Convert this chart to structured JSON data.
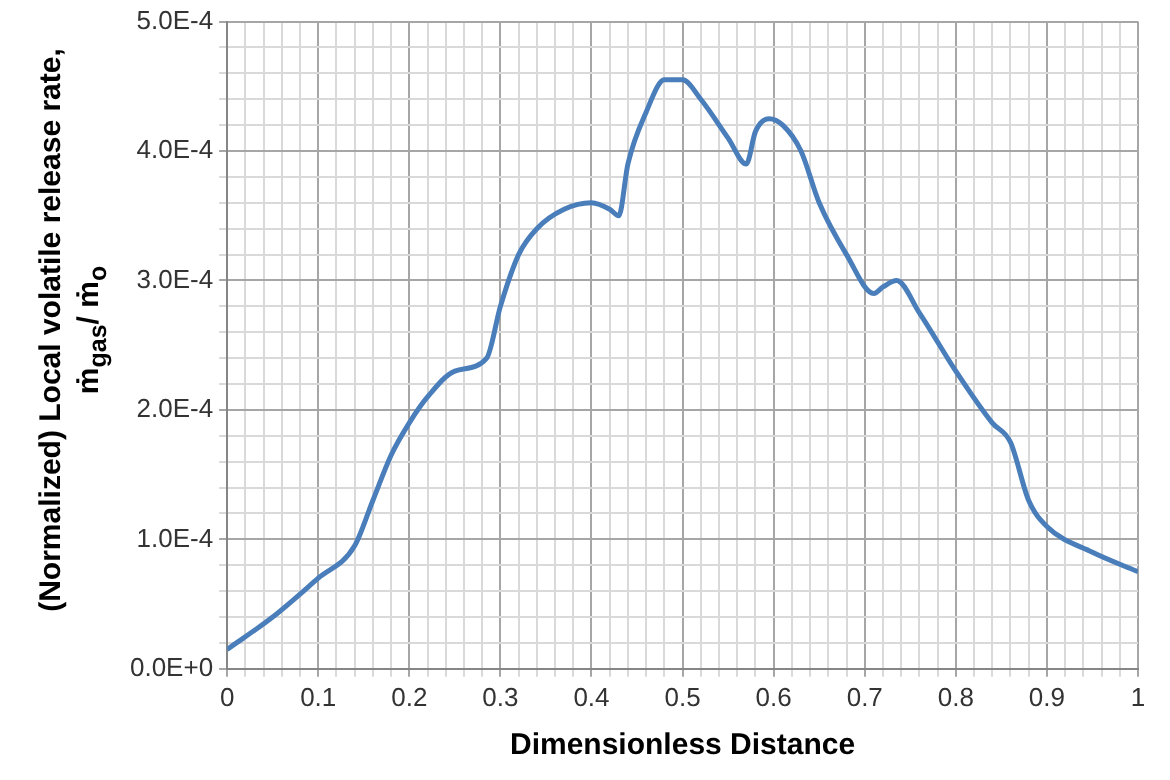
{
  "chart_data": {
    "type": "line",
    "xlabel": "Dimensionless Distance",
    "ylabel": "(Normalized) Local volatile release rate, ṁ$_{gas}$/ ṁ$_{o}$",
    "x": [
      0,
      0.05,
      0.1,
      0.14,
      0.16,
      0.18,
      0.2,
      0.22,
      0.25,
      0.285,
      0.3,
      0.32,
      0.34,
      0.37,
      0.4,
      0.42,
      0.43,
      0.44,
      0.46,
      0.48,
      0.5,
      0.52,
      0.55,
      0.57,
      0.58,
      0.595,
      0.61,
      0.63,
      0.65,
      0.68,
      0.71,
      0.72,
      0.735,
      0.76,
      0.8,
      0.84,
      0.86,
      0.88,
      0.9,
      0.95,
      1
    ],
    "series": [
      {
        "color": "#4a7ebb",
        "values": [
          1.5e-05,
          4e-05,
          7e-05,
          9.5e-05,
          0.00013,
          0.000165,
          0.00019,
          0.00021,
          0.00023,
          0.00024,
          0.00028,
          0.00032,
          0.00034,
          0.000355,
          0.00036,
          0.000355,
          0.00035,
          0.00039,
          0.00043,
          0.000455,
          0.000455,
          0.00044,
          0.00041,
          0.00039,
          0.000415,
          0.000425,
          0.00042,
          0.0004,
          0.00036,
          0.00032,
          0.00029,
          0.000295,
          0.0003,
          0.000275,
          0.00023,
          0.00019,
          0.000175,
          0.00013,
          0.00011,
          9e-05,
          7.5e-05
        ]
      }
    ],
    "xlim": [
      0,
      1
    ],
    "xticks": [
      0,
      {
        "value": 0.02,
        "label": null
      },
      {
        "value": 0.04,
        "label": null
      },
      {
        "value": 0.06,
        "label": null
      },
      {
        "value": 0.08,
        "label": null
      },
      0.1,
      {
        "value": 0.12,
        "label": null
      },
      {
        "value": 0.14,
        "label": null
      },
      {
        "value": 0.16,
        "label": null
      },
      {
        "value": 0.18,
        "label": null
      },
      0.2,
      {
        "value": 0.22,
        "label": null
      },
      {
        "value": 0.24,
        "label": null
      },
      {
        "value": 0.26,
        "label": null
      },
      {
        "value": 0.28,
        "label": null
      },
      0.3,
      {
        "value": 0.32,
        "label": null
      },
      {
        "value": 0.34,
        "label": null
      },
      {
        "value": 0.36,
        "label": null
      },
      {
        "value": 0.38,
        "label": null
      },
      0.4,
      {
        "value": 0.42,
        "label": null
      },
      {
        "value": 0.44,
        "label": null
      },
      {
        "value": 0.46,
        "label": null
      },
      {
        "value": 0.48,
        "label": null
      },
      0.5,
      {
        "value": 0.52,
        "label": null
      },
      {
        "value": 0.54,
        "label": null
      },
      {
        "value": 0.56,
        "label": null
      },
      {
        "value": 0.58,
        "label": null
      },
      0.6,
      {
        "value": 0.62,
        "label": null
      },
      {
        "value": 0.64,
        "label": null
      },
      {
        "value": 0.66,
        "label": null
      },
      {
        "value": 0.68,
        "label": null
      },
      0.7,
      {
        "value": 0.72,
        "label": null
      },
      {
        "value": 0.74,
        "label": null
      },
      {
        "value": 0.76,
        "label": null
      },
      {
        "value": 0.78,
        "label": null
      },
      0.8,
      {
        "value": 0.82,
        "label": null
      },
      {
        "value": 0.84,
        "label": null
      },
      {
        "value": 0.86,
        "label": null
      },
      {
        "value": 0.88,
        "label": null
      },
      0.9,
      {
        "value": 0.92,
        "label": null
      },
      {
        "value": 0.94,
        "label": null
      },
      {
        "value": 0.96,
        "label": null
      },
      {
        "value": 0.98,
        "label": null
      },
      1
    ],
    "ylim": [
      0,
      0.0005
    ],
    "yticks": [
      {
        "value": 0,
        "label": "0.0E+0"
      },
      {
        "value": 2e-05,
        "label": null
      },
      {
        "value": 4e-05,
        "label": null
      },
      {
        "value": 6e-05,
        "label": null
      },
      {
        "value": 8e-05,
        "label": null
      },
      {
        "value": 0.0001,
        "label": "1.0E-4"
      },
      {
        "value": 0.00012,
        "label": null
      },
      {
        "value": 0.00014,
        "label": null
      },
      {
        "value": 0.00016,
        "label": null
      },
      {
        "value": 0.00018,
        "label": null
      },
      {
        "value": 0.0002,
        "label": "2.0E-4"
      },
      {
        "value": 0.00022,
        "label": null
      },
      {
        "value": 0.00024,
        "label": null
      },
      {
        "value": 0.00026,
        "label": null
      },
      {
        "value": 0.00028,
        "label": null
      },
      {
        "value": 0.0003,
        "label": "3.0E-4"
      },
      {
        "value": 0.00032,
        "label": null
      },
      {
        "value": 0.00034,
        "label": null
      },
      {
        "value": 0.00036,
        "label": null
      },
      {
        "value": 0.00038,
        "label": null
      },
      {
        "value": 0.0004,
        "label": "4.0E-4"
      },
      {
        "value": 0.00042,
        "label": null
      },
      {
        "value": 0.00044,
        "label": null
      },
      {
        "value": 0.00046,
        "label": null
      },
      {
        "value": 0.00048,
        "label": null
      },
      {
        "value": 0.0005,
        "label": "5.0E-4"
      }
    ],
    "grid": true,
    "marker": "none",
    "line_style": "solid"
  }
}
